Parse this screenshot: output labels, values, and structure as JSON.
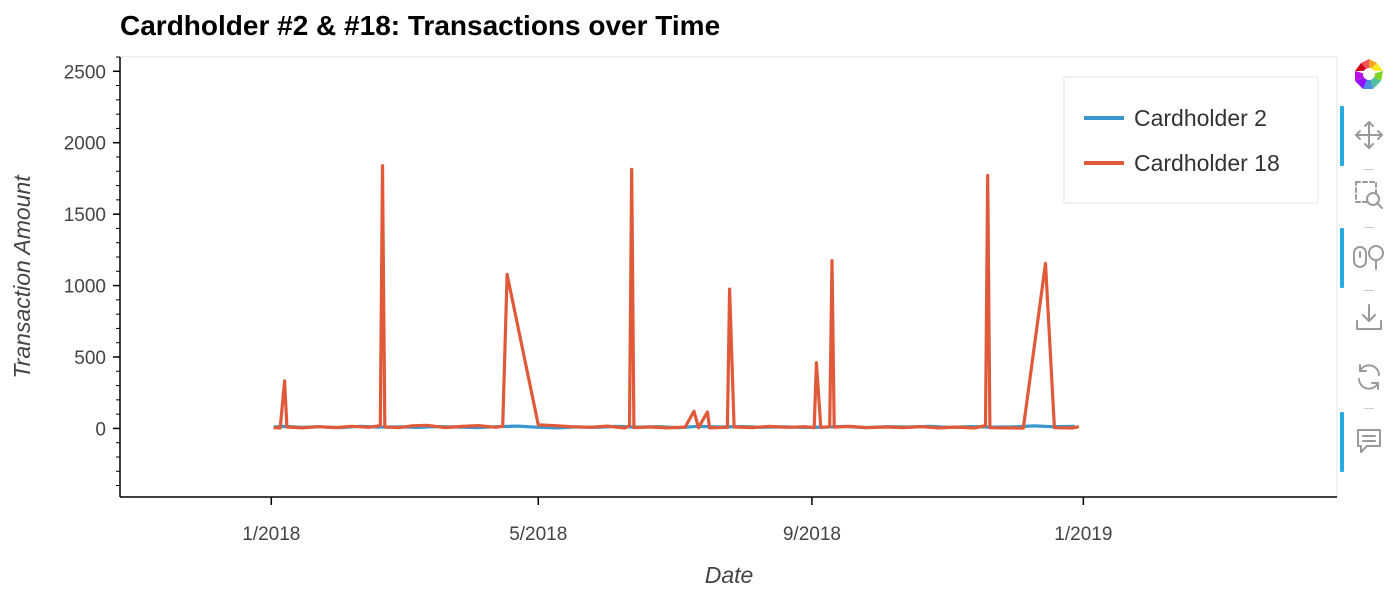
{
  "chart_data": {
    "type": "line",
    "title": "Cardholder #2 & #18: Transactions over Time",
    "xlabel": "Date",
    "ylabel": "Transaction Amount",
    "x_type": "date",
    "xlim": [
      "2017-10-25",
      "2019-04-25"
    ],
    "ylim": [
      -480,
      2600
    ],
    "x_ticks": [
      {
        "date": "2018-01-01",
        "label": "1/2018"
      },
      {
        "date": "2018-05-01",
        "label": "5/2018"
      },
      {
        "date": "2018-09-01",
        "label": "9/2018"
      },
      {
        "date": "2019-01-01",
        "label": "1/2019"
      }
    ],
    "y_ticks": [
      0,
      500,
      1000,
      1500,
      2000,
      2500
    ],
    "y_tick_labels": [
      "0",
      "500",
      "1000",
      "1500",
      "2000",
      "2500"
    ],
    "grid": false,
    "legend_position": "top-right",
    "series": [
      {
        "name": "Cardholder 2",
        "color": "#3a96cf",
        "points": [
          [
            "2018-01-02",
            10
          ],
          [
            "2018-01-07",
            14
          ],
          [
            "2018-01-15",
            8
          ],
          [
            "2018-01-22",
            12
          ],
          [
            "2018-02-01",
            6
          ],
          [
            "2018-02-10",
            15
          ],
          [
            "2018-02-18",
            9
          ],
          [
            "2018-02-28",
            11
          ],
          [
            "2018-03-08",
            7
          ],
          [
            "2018-03-16",
            13
          ],
          [
            "2018-03-25",
            10
          ],
          [
            "2018-04-04",
            5
          ],
          [
            "2018-04-12",
            12
          ],
          [
            "2018-04-22",
            16
          ],
          [
            "2018-05-01",
            8
          ],
          [
            "2018-05-10",
            4
          ],
          [
            "2018-05-18",
            11
          ],
          [
            "2018-05-27",
            7
          ],
          [
            "2018-06-05",
            14
          ],
          [
            "2018-06-14",
            9
          ],
          [
            "2018-06-24",
            12
          ],
          [
            "2018-07-03",
            6
          ],
          [
            "2018-07-12",
            15
          ],
          [
            "2018-07-22",
            10
          ],
          [
            "2018-08-01",
            13
          ],
          [
            "2018-08-10",
            8
          ],
          [
            "2018-08-19",
            11
          ],
          [
            "2018-08-29",
            7
          ],
          [
            "2018-09-07",
            9
          ],
          [
            "2018-09-16",
            14
          ],
          [
            "2018-09-25",
            6
          ],
          [
            "2018-10-04",
            12
          ],
          [
            "2018-10-14",
            10
          ],
          [
            "2018-10-24",
            15
          ],
          [
            "2018-11-02",
            8
          ],
          [
            "2018-11-12",
            13
          ],
          [
            "2018-11-21",
            9
          ],
          [
            "2018-11-30",
            11
          ],
          [
            "2018-12-10",
            18
          ],
          [
            "2018-12-18",
            12
          ],
          [
            "2018-12-28",
            15
          ]
        ]
      },
      {
        "name": "Cardholder 18",
        "color": "#e05a3a",
        "points": [
          [
            "2018-01-02",
            5
          ],
          [
            "2018-01-05",
            3
          ],
          [
            "2018-01-07",
            333
          ],
          [
            "2018-01-08",
            10
          ],
          [
            "2018-01-15",
            4
          ],
          [
            "2018-01-22",
            12
          ],
          [
            "2018-01-30",
            6
          ],
          [
            "2018-02-06",
            15
          ],
          [
            "2018-02-14",
            8
          ],
          [
            "2018-02-19",
            20
          ],
          [
            "2018-02-20",
            1839
          ],
          [
            "2018-02-21",
            10
          ],
          [
            "2018-02-27",
            5
          ],
          [
            "2018-03-05",
            18
          ],
          [
            "2018-03-12",
            22
          ],
          [
            "2018-03-20",
            6
          ],
          [
            "2018-03-28",
            14
          ],
          [
            "2018-04-04",
            20
          ],
          [
            "2018-04-12",
            8
          ],
          [
            "2018-04-15",
            15
          ],
          [
            "2018-04-17",
            1078
          ],
          [
            "2018-05-01",
            25
          ],
          [
            "2018-05-08",
            20
          ],
          [
            "2018-05-16",
            12
          ],
          [
            "2018-05-24",
            8
          ],
          [
            "2018-06-01",
            16
          ],
          [
            "2018-06-09",
            3
          ],
          [
            "2018-06-11",
            20
          ],
          [
            "2018-06-12",
            1813
          ],
          [
            "2018-06-13",
            6
          ],
          [
            "2018-06-20",
            10
          ],
          [
            "2018-06-28",
            4
          ],
          [
            "2018-07-06",
            9
          ],
          [
            "2018-07-10",
            120
          ],
          [
            "2018-07-12",
            5
          ],
          [
            "2018-07-16",
            115
          ],
          [
            "2018-07-17",
            4
          ],
          [
            "2018-07-25",
            8
          ],
          [
            "2018-07-26",
            975
          ],
          [
            "2018-07-28",
            10
          ],
          [
            "2018-08-05",
            6
          ],
          [
            "2018-08-13",
            14
          ],
          [
            "2018-08-21",
            8
          ],
          [
            "2018-08-29",
            12
          ],
          [
            "2018-09-02",
            5
          ],
          [
            "2018-09-03",
            460
          ],
          [
            "2018-09-05",
            8
          ],
          [
            "2018-09-09",
            12
          ],
          [
            "2018-09-10",
            1175
          ],
          [
            "2018-09-11",
            9
          ],
          [
            "2018-09-18",
            14
          ],
          [
            "2018-09-26",
            5
          ],
          [
            "2018-10-04",
            10
          ],
          [
            "2018-10-12",
            6
          ],
          [
            "2018-10-20",
            12
          ],
          [
            "2018-10-28",
            4
          ],
          [
            "2018-11-05",
            9
          ],
          [
            "2018-11-13",
            3
          ],
          [
            "2018-11-18",
            20
          ],
          [
            "2018-11-19",
            1771
          ],
          [
            "2018-11-20",
            5
          ],
          [
            "2018-11-27",
            4
          ],
          [
            "2018-12-05",
            2
          ],
          [
            "2018-12-15",
            1155
          ],
          [
            "2018-12-19",
            5
          ],
          [
            "2018-12-27",
            3
          ],
          [
            "2018-12-30",
            12
          ]
        ]
      }
    ]
  },
  "toolbar": {
    "tools": [
      {
        "icon": "bokeh-logo-icon",
        "active": false
      },
      {
        "icon": "pan-icon",
        "active": true
      },
      {
        "icon": "box-zoom-icon",
        "active": false
      },
      {
        "icon": "wheel-zoom-icon",
        "active": true
      },
      {
        "icon": "save-icon",
        "active": false
      },
      {
        "icon": "reset-icon",
        "active": false
      },
      {
        "icon": "hover-icon",
        "active": true
      }
    ]
  }
}
